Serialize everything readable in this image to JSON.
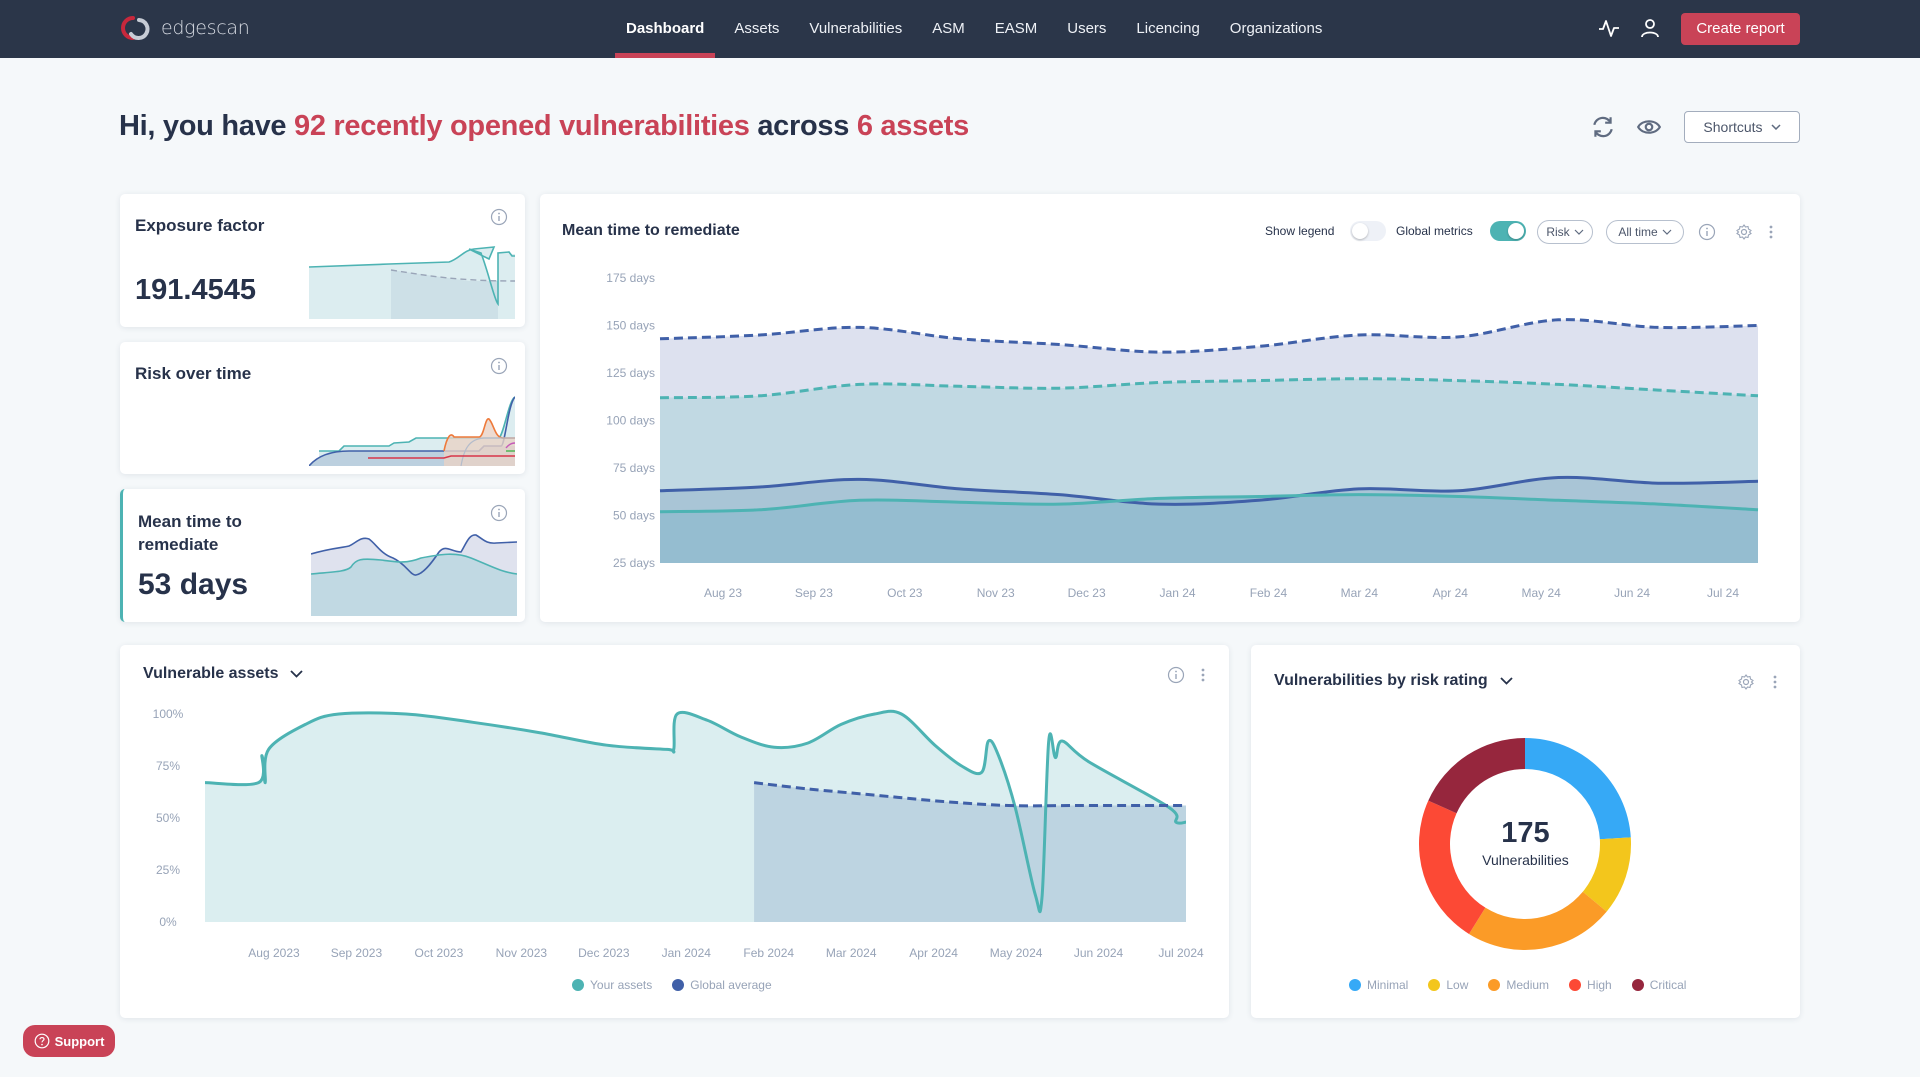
{
  "app": {
    "brand": "edgescan"
  },
  "nav": {
    "items": [
      {
        "label": "Dashboard",
        "active": true
      },
      {
        "label": "Assets"
      },
      {
        "label": "Vulnerabilities"
      },
      {
        "label": "ASM"
      },
      {
        "label": "EASM"
      },
      {
        "label": "Users"
      },
      {
        "label": "Licencing"
      },
      {
        "label": "Organizations"
      }
    ],
    "activity_icon": "activity-icon",
    "user_icon": "user-icon",
    "create_report_label": "Create report"
  },
  "header": {
    "greeting_prefix": "Hi, you have ",
    "vuln_count_text": "92 recently opened vulnerabilities",
    "greeting_middle": " across ",
    "asset_count_text": "6 assets",
    "refresh_icon": "refresh-icon",
    "visibility_icon": "eye-icon",
    "shortcuts_label": "Shortcuts"
  },
  "cards": {
    "exposure": {
      "title": "Exposure factor",
      "value": "191.4545"
    },
    "risk": {
      "title": "Risk over time"
    },
    "mttr_small": {
      "title_line1": "Mean time to",
      "title_line2": "remediate",
      "value": "53 days"
    }
  },
  "mttr_chart": {
    "title": "Mean time to remediate",
    "show_legend_label": "Show legend",
    "show_legend_on": false,
    "global_metrics_label": "Global metrics",
    "global_metrics_on": true,
    "risk_filter": "Risk",
    "time_filter": "All time"
  },
  "vuln_assets": {
    "title": "Vulnerable assets",
    "legend": [
      {
        "label": "Your assets",
        "color": "#4db3b3"
      },
      {
        "label": "Global average",
        "color": "#4060a8"
      }
    ]
  },
  "risk_rating": {
    "title": "Vulnerabilities by risk rating",
    "total": "175",
    "total_label": "Vulnerabilities"
  },
  "support": {
    "label": "Support"
  },
  "colors": {
    "brand_red": "#c94357",
    "nav_bg": "#2b3649",
    "teal": "#4db3b3",
    "navy": "#4060a8"
  },
  "chart_data": [
    {
      "id": "mean-time-to-remediate",
      "type": "area",
      "title": "Mean time to remediate",
      "x": [
        "Aug 23",
        "Sep 23",
        "Oct 23",
        "Nov 23",
        "Dec 23",
        "Jan 24",
        "Feb 24",
        "Mar 24",
        "Apr 24",
        "May 24",
        "Jun 24",
        "Jul 24"
      ],
      "ylabel": "",
      "yticks": [
        "25 days",
        "50 days",
        "75 days",
        "100 days",
        "125 days",
        "150 days",
        "175 days"
      ],
      "ylim": [
        25,
        175
      ],
      "series": [
        {
          "name": "Global (navy, dashed)",
          "color": "#4060a8",
          "dashed": true,
          "values": [
            143,
            145,
            149,
            143,
            140,
            136,
            139,
            145,
            144,
            153,
            149,
            150
          ]
        },
        {
          "name": "Global (teal, dashed)",
          "color": "#4db3b3",
          "dashed": true,
          "values": [
            112,
            113,
            119,
            118,
            117,
            120,
            121,
            122,
            121,
            119,
            116,
            113
          ]
        },
        {
          "name": "Yours (navy)",
          "color": "#4060a8",
          "dashed": false,
          "values": [
            63,
            65,
            69,
            64,
            61,
            56,
            58,
            64,
            63,
            70,
            67,
            68
          ]
        },
        {
          "name": "Yours (teal)",
          "color": "#4db3b3",
          "dashed": false,
          "values": [
            52,
            53,
            58,
            57,
            56,
            59,
            60,
            61,
            60,
            58,
            56,
            53
          ]
        }
      ],
      "legend": "hidden"
    },
    {
      "id": "vulnerable-assets",
      "type": "area",
      "title": "Vulnerable assets",
      "x": [
        "Aug 2023",
        "Sep 2023",
        "Oct 2023",
        "Nov 2023",
        "Dec 2023",
        "Jan 2024",
        "Feb 2024",
        "Mar 2024",
        "Apr 2024",
        "May 2024",
        "Jun 2024",
        "Jul 2024"
      ],
      "yticks": [
        "0%",
        "25%",
        "50%",
        "75%",
        "100%"
      ],
      "ylim": [
        0,
        100
      ],
      "series": [
        {
          "name": "Your assets",
          "color": "#4db3b3",
          "points": [
            [
              0,
              67
            ],
            [
              0.8,
              67
            ],
            [
              0.85,
              80
            ],
            [
              0.9,
              67
            ],
            [
              0.95,
              83
            ],
            [
              1.5,
              95
            ],
            [
              2,
              100
            ],
            [
              3,
              100
            ],
            [
              4,
              96
            ],
            [
              5,
              91
            ],
            [
              6,
              85
            ],
            [
              6.9,
              83
            ],
            [
              7.0,
              83
            ],
            [
              7.05,
              100
            ],
            [
              7.5,
              97
            ],
            [
              8,
              89
            ],
            [
              8.5,
              84
            ],
            [
              9,
              86
            ],
            [
              9.5,
              95
            ],
            [
              10,
              100
            ],
            [
              10.4,
              100
            ],
            [
              10.9,
              85
            ],
            [
              11.3,
              75
            ],
            [
              11.6,
              72
            ],
            [
              11.7,
              87
            ],
            [
              11.85,
              80
            ],
            [
              12.1,
              55
            ],
            [
              12.4,
              13
            ],
            [
              12.5,
              12
            ],
            [
              12.6,
              87
            ],
            [
              12.7,
              79
            ],
            [
              12.8,
              87
            ],
            [
              13.2,
              77
            ],
            [
              14.4,
              55
            ],
            [
              14.5,
              48
            ],
            [
              14.65,
              48
            ]
          ]
        },
        {
          "name": "Global average",
          "color": "#4060a8",
          "dashed": true,
          "points": [
            [
              8.2,
              67
            ],
            [
              9,
              64
            ],
            [
              10,
              61
            ],
            [
              11,
              58
            ],
            [
              12,
              56
            ],
            [
              13,
              56
            ],
            [
              14,
              56
            ],
            [
              14.65,
              56
            ]
          ]
        }
      ],
      "legend": "bottom-center"
    },
    {
      "id": "vulnerabilities-by-risk-rating",
      "type": "pie",
      "title": "Vulnerabilities by risk rating",
      "total": 175,
      "categories": [
        "Minimal",
        "Low",
        "Medium",
        "High",
        "Critical"
      ],
      "values": [
        42,
        21,
        40,
        40,
        32
      ],
      "colors": [
        "#36a9f6",
        "#f3c61c",
        "#fb9b27",
        "#fc4935",
        "#96263d"
      ],
      "legend": "bottom-center"
    }
  ]
}
